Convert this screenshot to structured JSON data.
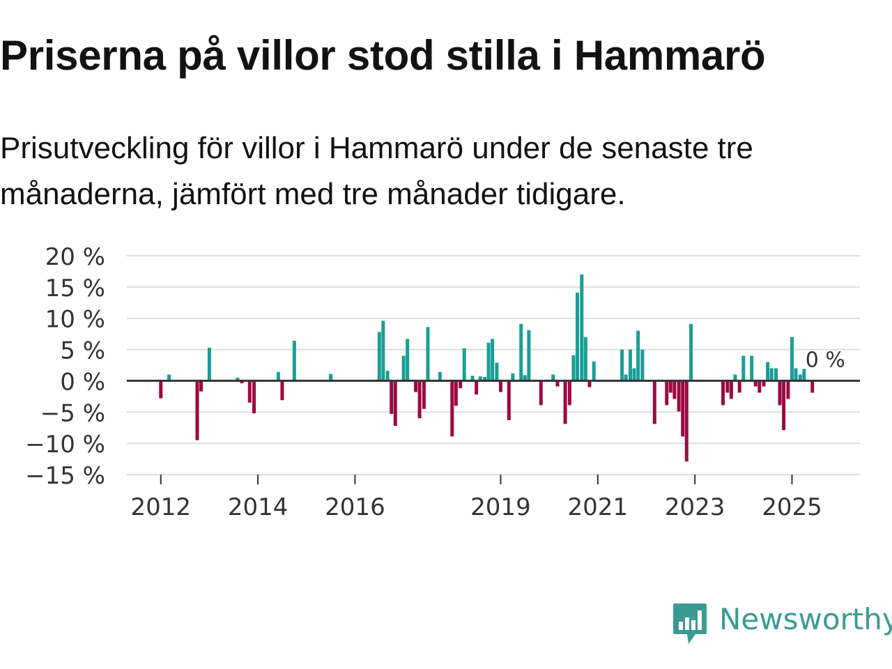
{
  "title": "Priserna på villor stod stilla i Hammarö",
  "subtitle": "Prisutveckling för villor i Hammarö under de senaste tre månaderna, jämfört med tre månader tidigare.",
  "logo": {
    "text": "Newsworthy",
    "icon": "newsworthy-logo-icon"
  },
  "colors": {
    "positive": "#1a9e96",
    "negative": "#9e0942",
    "grid": "#dddddd",
    "zero": "#333333",
    "brand": "#3b9a94"
  },
  "chart_data": {
    "type": "bar",
    "title": "Priserna på villor stod stilla i Hammarö",
    "xlabel": "",
    "ylabel": "",
    "ylim": [
      -15,
      20
    ],
    "yticks": [
      20,
      15,
      10,
      5,
      0,
      -5,
      -10,
      -15
    ],
    "ytick_labels": [
      "20 %",
      "15 %",
      "10 %",
      "5 %",
      "0 %",
      "−5 %",
      "−10 %",
      "−15 %"
    ],
    "xlim": [
      2011.3,
      2026.4
    ],
    "xticks": [
      2012,
      2014,
      2016,
      2019,
      2021,
      2023,
      2025
    ],
    "xtick_labels": [
      "2012",
      "2014",
      "2016",
      "2019",
      "2021",
      "2023",
      "2025"
    ],
    "last_value_label": "0 %",
    "series": [
      {
        "name": "Prisutveckling",
        "x": [
          2012.0,
          2012.17,
          2012.75,
          2012.83,
          2013.0,
          2013.58,
          2013.67,
          2013.83,
          2013.92,
          2014.42,
          2014.5,
          2014.75,
          2015.5,
          2016.5,
          2016.58,
          2016.67,
          2016.75,
          2016.83,
          2017.0,
          2017.08,
          2017.25,
          2017.33,
          2017.42,
          2017.5,
          2017.75,
          2018.0,
          2018.08,
          2018.17,
          2018.25,
          2018.42,
          2018.5,
          2018.58,
          2018.67,
          2018.75,
          2018.83,
          2018.92,
          2019.0,
          2019.17,
          2019.25,
          2019.42,
          2019.5,
          2019.58,
          2019.83,
          2020.08,
          2020.17,
          2020.33,
          2020.42,
          2020.5,
          2020.58,
          2020.67,
          2020.75,
          2020.83,
          2020.92,
          2021.5,
          2021.58,
          2021.67,
          2021.75,
          2021.83,
          2021.92,
          2022.17,
          2022.42,
          2022.5,
          2022.58,
          2022.67,
          2022.75,
          2022.83,
          2022.92,
          2023.58,
          2023.67,
          2023.75,
          2023.83,
          2023.92,
          2024.0,
          2024.17,
          2024.25,
          2024.33,
          2024.42,
          2024.5,
          2024.58,
          2024.67,
          2024.75,
          2024.83,
          2024.92,
          2025.0,
          2025.08,
          2025.17,
          2025.25,
          2025.42,
          2025.5,
          2025.58
        ],
        "values": [
          -2.8,
          1.0,
          -9.5,
          -1.7,
          5.3,
          0.5,
          -0.4,
          -3.5,
          -5.2,
          1.4,
          -3.1,
          6.4,
          1.1,
          7.8,
          9.6,
          1.6,
          -5.3,
          -7.2,
          4.0,
          6.7,
          -1.8,
          -6.0,
          -4.5,
          8.6,
          1.4,
          -8.9,
          -4.0,
          -1.2,
          5.2,
          0.8,
          -2.2,
          0.7,
          0.6,
          6.1,
          6.7,
          2.9,
          -1.8,
          -6.3,
          1.2,
          9.1,
          0.9,
          8.1,
          -3.9,
          1.0,
          -0.9,
          -6.9,
          -3.9,
          4.1,
          14.1,
          17.0,
          7.0,
          -1.0,
          3.1,
          5.0,
          1.0,
          5.0,
          2.0,
          8.0,
          5.0,
          -6.9,
          -3.9,
          -1.9,
          -2.9,
          -4.9,
          -8.9,
          -12.9,
          9.1,
          -3.9,
          -1.9,
          -2.9,
          1.0,
          -1.9,
          4.0,
          4.0,
          -0.9,
          -1.9,
          -0.9,
          3.0,
          2.0,
          2.0,
          -3.9,
          -7.9,
          -2.9,
          7.0,
          2.0,
          1.0,
          1.9,
          -1.9,
          0.0,
          0.0
        ]
      }
    ]
  }
}
